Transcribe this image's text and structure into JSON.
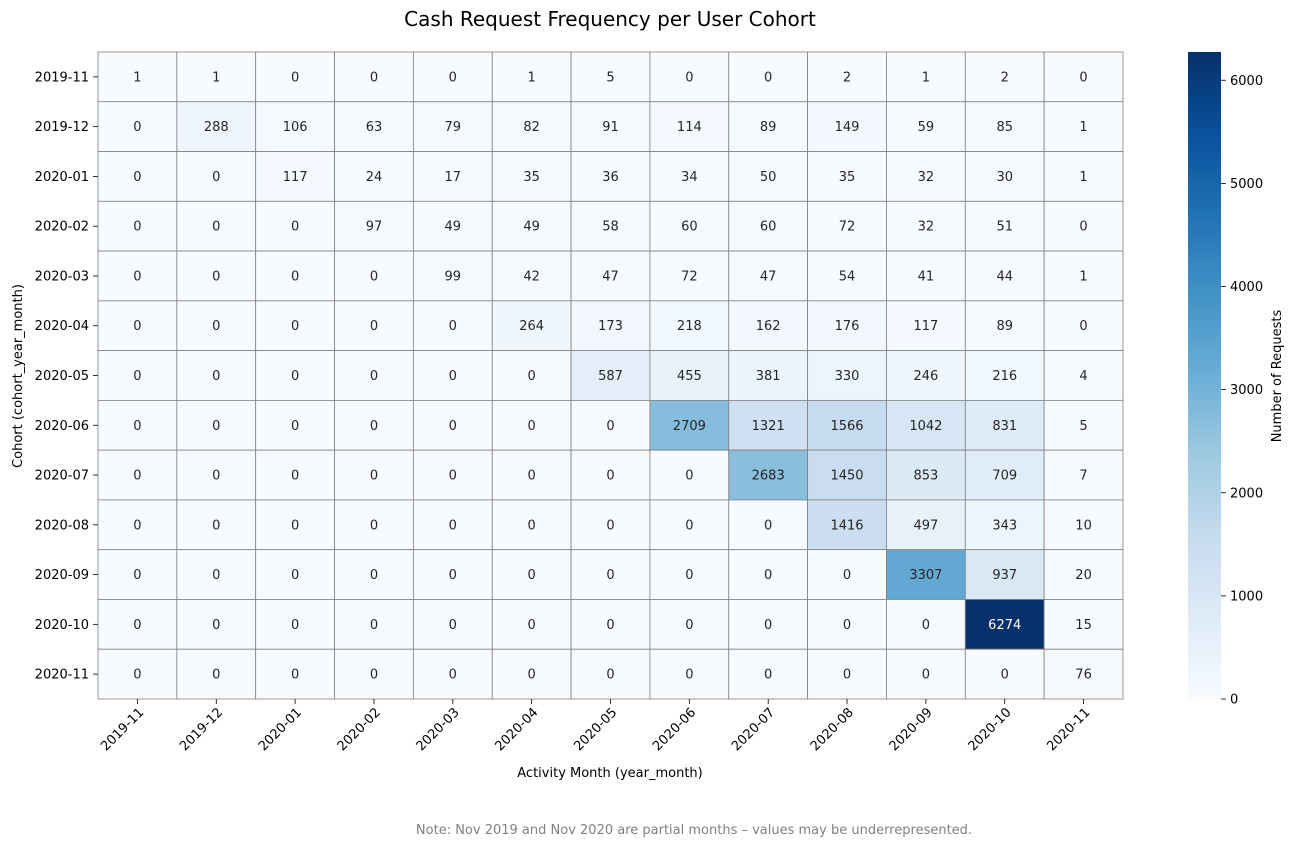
{
  "chart_data": {
    "type": "heatmap",
    "title": "Cash Request Frequency per User Cohort",
    "xlabel": "Activity Month (year_month)",
    "ylabel": "Cohort (cohort_year_month)",
    "x": [
      "2019-11",
      "2019-12",
      "2020-01",
      "2020-02",
      "2020-03",
      "2020-04",
      "2020-05",
      "2020-06",
      "2020-07",
      "2020-08",
      "2020-09",
      "2020-10",
      "2020-11"
    ],
    "y": [
      "2019-11",
      "2019-12",
      "2020-01",
      "2020-02",
      "2020-03",
      "2020-04",
      "2020-05",
      "2020-06",
      "2020-07",
      "2020-08",
      "2020-09",
      "2020-10",
      "2020-11"
    ],
    "values": [
      [
        1,
        1,
        0,
        0,
        0,
        1,
        5,
        0,
        0,
        2,
        1,
        2,
        0
      ],
      [
        0,
        288,
        106,
        63,
        79,
        82,
        91,
        114,
        89,
        149,
        59,
        85,
        1
      ],
      [
        0,
        0,
        117,
        24,
        17,
        35,
        36,
        34,
        50,
        35,
        32,
        30,
        1
      ],
      [
        0,
        0,
        0,
        97,
        49,
        49,
        58,
        60,
        60,
        72,
        32,
        51,
        0
      ],
      [
        0,
        0,
        0,
        0,
        99,
        42,
        47,
        72,
        47,
        54,
        41,
        44,
        1
      ],
      [
        0,
        0,
        0,
        0,
        0,
        264,
        173,
        218,
        162,
        176,
        117,
        89,
        0
      ],
      [
        0,
        0,
        0,
        0,
        0,
        0,
        587,
        455,
        381,
        330,
        246,
        216,
        4
      ],
      [
        0,
        0,
        0,
        0,
        0,
        0,
        0,
        2709,
        1321,
        1566,
        1042,
        831,
        5
      ],
      [
        0,
        0,
        0,
        0,
        0,
        0,
        0,
        0,
        2683,
        1450,
        853,
        709,
        7
      ],
      [
        0,
        0,
        0,
        0,
        0,
        0,
        0,
        0,
        0,
        1416,
        497,
        343,
        10
      ],
      [
        0,
        0,
        0,
        0,
        0,
        0,
        0,
        0,
        0,
        0,
        3307,
        937,
        20
      ],
      [
        0,
        0,
        0,
        0,
        0,
        0,
        0,
        0,
        0,
        0,
        0,
        6274,
        15
      ],
      [
        0,
        0,
        0,
        0,
        0,
        0,
        0,
        0,
        0,
        0,
        0,
        0,
        76
      ]
    ],
    "colormap": "Blues",
    "color_range": [
      0,
      6274
    ],
    "colorbar": {
      "label": "Number of Requests",
      "ticks": [
        0,
        1000,
        2000,
        3000,
        4000,
        5000,
        6000
      ]
    },
    "grid": true,
    "grid_color": "#808080",
    "annotation": "Note: Nov 2019 and Nov 2020 are partial months – values may be underrepresented."
  }
}
